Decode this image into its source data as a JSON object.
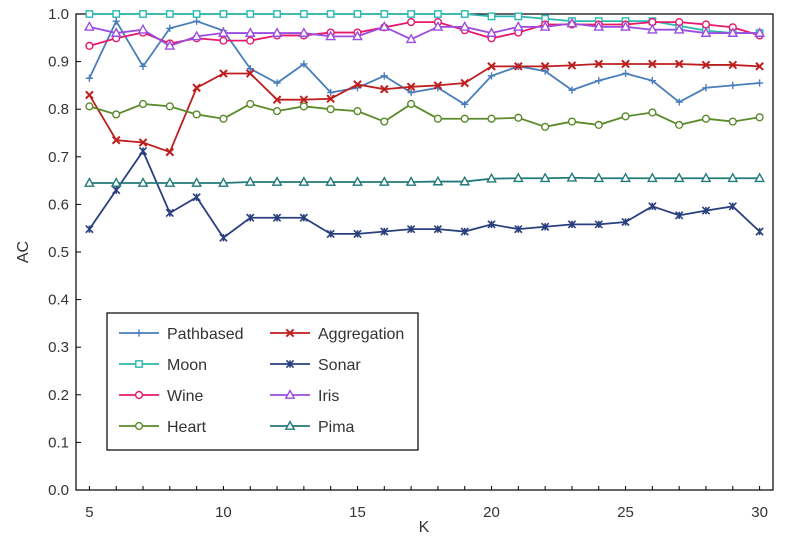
{
  "chart_data": {
    "type": "line",
    "title": "",
    "xlabel": "K",
    "ylabel": "AC",
    "xlim": [
      4.5,
      30.5
    ],
    "ylim": [
      0,
      1.0
    ],
    "x_ticks": [
      5,
      10,
      15,
      20,
      25,
      30
    ],
    "y_ticks": [
      0.0,
      0.1,
      0.2,
      0.3,
      0.4,
      0.5,
      0.6,
      0.7,
      0.8,
      0.9,
      1.0
    ],
    "grid": false,
    "legend_position": "lower-left",
    "x": [
      5,
      6,
      7,
      8,
      9,
      10,
      11,
      12,
      13,
      14,
      15,
      16,
      17,
      18,
      19,
      20,
      21,
      22,
      23,
      24,
      25,
      26,
      27,
      28,
      29,
      30
    ],
    "series": [
      {
        "name": "Pathbased",
        "color": "#4a7ebb",
        "marker": "plus",
        "values": [
          0.865,
          0.985,
          0.89,
          0.97,
          0.985,
          0.965,
          0.885,
          0.855,
          0.895,
          0.835,
          0.845,
          0.87,
          0.835,
          0.845,
          0.81,
          0.87,
          0.89,
          0.88,
          0.84,
          0.86,
          0.875,
          0.86,
          0.815,
          0.845,
          0.85,
          0.855
        ]
      },
      {
        "name": "Aggregation",
        "color": "#be1e1e",
        "marker": "x",
        "values": [
          0.83,
          0.735,
          0.73,
          0.71,
          0.845,
          0.875,
          0.875,
          0.82,
          0.82,
          0.822,
          0.852,
          0.842,
          0.847,
          0.85,
          0.855,
          0.89,
          0.89,
          0.89,
          0.892,
          0.895,
          0.895,
          0.895,
          0.895,
          0.893,
          0.893,
          0.89
        ]
      },
      {
        "name": "Moon",
        "color": "#2cb8b0",
        "marker": "square",
        "values": [
          1.0,
          1.0,
          1.0,
          1.0,
          1.0,
          1.0,
          1.0,
          1.0,
          1.0,
          1.0,
          1.0,
          1.0,
          1.0,
          1.0,
          1.0,
          0.995,
          0.995,
          0.99,
          0.985,
          0.985,
          0.985,
          0.985,
          0.975,
          0.965,
          0.96,
          0.96
        ]
      },
      {
        "name": "Sonar",
        "color": "#2a3f7e",
        "marker": "star",
        "values": [
          0.548,
          0.63,
          0.712,
          0.582,
          0.615,
          0.53,
          0.572,
          0.572,
          0.572,
          0.538,
          0.538,
          0.543,
          0.548,
          0.548,
          0.543,
          0.558,
          0.548,
          0.553,
          0.558,
          0.558,
          0.563,
          0.596,
          0.577,
          0.587,
          0.596,
          0.543
        ]
      },
      {
        "name": "Wine",
        "color": "#e8186c",
        "marker": "circle",
        "values": [
          0.933,
          0.949,
          0.961,
          0.938,
          0.949,
          0.944,
          0.944,
          0.955,
          0.955,
          0.961,
          0.961,
          0.972,
          0.983,
          0.983,
          0.966,
          0.949,
          0.961,
          0.978,
          0.978,
          0.978,
          0.978,
          0.983,
          0.983,
          0.978,
          0.972,
          0.955
        ]
      },
      {
        "name": "Iris",
        "color": "#9b4de0",
        "marker": "triangle",
        "values": [
          0.973,
          0.96,
          0.967,
          0.933,
          0.953,
          0.96,
          0.96,
          0.96,
          0.96,
          0.953,
          0.953,
          0.973,
          0.947,
          0.973,
          0.973,
          0.96,
          0.973,
          0.973,
          0.98,
          0.973,
          0.973,
          0.967,
          0.967,
          0.96,
          0.96,
          0.96
        ]
      },
      {
        "name": "Heart",
        "color": "#5a8a2a",
        "marker": "circle",
        "values": [
          0.806,
          0.789,
          0.811,
          0.806,
          0.789,
          0.78,
          0.811,
          0.796,
          0.806,
          0.8,
          0.796,
          0.774,
          0.811,
          0.78,
          0.78,
          0.78,
          0.782,
          0.763,
          0.774,
          0.767,
          0.785,
          0.793,
          0.767,
          0.78,
          0.774,
          0.783
        ]
      },
      {
        "name": "Pima",
        "color": "#237a7a",
        "marker": "triangle",
        "values": [
          0.645,
          0.645,
          0.645,
          0.645,
          0.645,
          0.645,
          0.647,
          0.647,
          0.647,
          0.647,
          0.647,
          0.647,
          0.647,
          0.648,
          0.648,
          0.654,
          0.655,
          0.655,
          0.656,
          0.655,
          0.655,
          0.655,
          0.655,
          0.655,
          0.655,
          0.655
        ]
      }
    ]
  }
}
